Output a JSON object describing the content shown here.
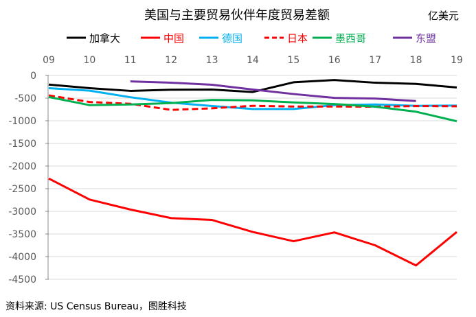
{
  "chart_data": {
    "type": "line",
    "title": "美国与主要贸易伙伴年度贸易差额",
    "unit": "亿美元",
    "source": "资料来源: US Census Bureau，图胜科技",
    "categories": [
      "09",
      "10",
      "11",
      "12",
      "13",
      "14",
      "15",
      "16",
      "17",
      "18",
      "19"
    ],
    "yticks": [
      0,
      -500,
      -1000,
      -1500,
      -2000,
      -2500,
      -3000,
      -3500,
      -4000,
      -4500
    ],
    "ylim": [
      -4500,
      0
    ],
    "grid": true,
    "legend_position": "top",
    "series": [
      {
        "name": "加拿大",
        "color": "#000000",
        "dash": false,
        "values": [
          -200,
          -280,
          -340,
          -315,
          -310,
          -365,
          -150,
          -100,
          -160,
          -185,
          -265
        ]
      },
      {
        "name": "中国",
        "color": "#ff0000",
        "dash": false,
        "values": [
          -2275,
          -2740,
          -2960,
          -3150,
          -3190,
          -3455,
          -3660,
          -3465,
          -3750,
          -4195,
          -3455
        ]
      },
      {
        "name": "德国",
        "color": "#00b0f0",
        "dash": false,
        "values": [
          -280,
          -335,
          -480,
          -600,
          -675,
          -740,
          -740,
          -655,
          -640,
          -670,
          -665
        ]
      },
      {
        "name": "日本",
        "color": "#ff0000",
        "dash": true,
        "values": [
          -440,
          -585,
          -625,
          -760,
          -725,
          -670,
          -685,
          -685,
          -690,
          -675,
          -680
        ]
      },
      {
        "name": "墨西哥",
        "color": "#00b050",
        "dash": false,
        "values": [
          -475,
          -655,
          -640,
          -610,
          -540,
          -550,
          -595,
          -630,
          -690,
          -800,
          -1010
        ]
      },
      {
        "name": "东盟",
        "color": "#7030a0",
        "dash": false,
        "values": [
          null,
          null,
          -130,
          -160,
          -205,
          -310,
          -410,
          -495,
          -510,
          -565,
          null
        ]
      }
    ]
  }
}
